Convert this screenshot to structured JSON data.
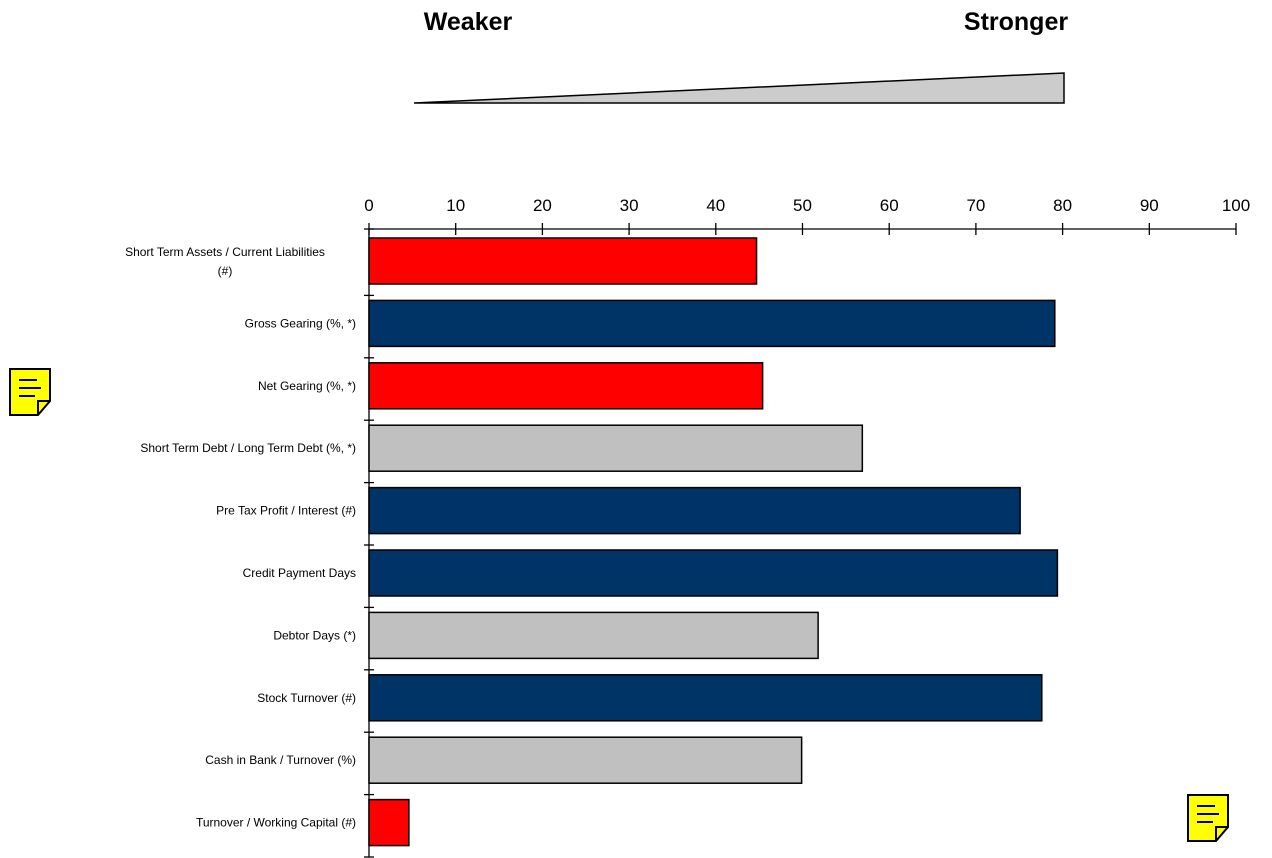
{
  "header": {
    "weaker_label": "Weaker",
    "stronger_label": "Stronger"
  },
  "icons": {
    "left_note": "note-icon",
    "right_note": "note-icon",
    "note_color": "#ffff00"
  },
  "chart_data": {
    "type": "bar",
    "orientation": "horizontal",
    "xlim": [
      0,
      100
    ],
    "x_ticks": [
      "0",
      "10",
      "20",
      "30",
      "40",
      "50",
      "60",
      "70",
      "80",
      "90",
      "100"
    ],
    "categories": [
      [
        "Short Term Assets / Current Liabilities",
        "(#)"
      ],
      [
        "Gross Gearing (%, *)"
      ],
      [
        "Net Gearing (%, *)"
      ],
      [
        "Short Term Debt / Long Term Debt (%, *)"
      ],
      [
        "Pre Tax Profit / Interest (#)"
      ],
      [
        "Credit Payment Days"
      ],
      [
        "Debtor Days (*)"
      ],
      [
        "Stock Turnover (#)"
      ],
      [
        "Cash in Bank / Turnover (%)"
      ],
      [
        "Turnover / Working Capital (#)"
      ]
    ],
    "values": [
      44.7,
      79.1,
      45.4,
      56.9,
      75.1,
      79.4,
      51.8,
      77.6,
      49.9,
      4.6
    ],
    "bar_colors": [
      "#ff0000",
      "#003366",
      "#ff0000",
      "#c0c0c0",
      "#003366",
      "#003366",
      "#c0c0c0",
      "#003366",
      "#c0c0c0",
      "#ff0000"
    ],
    "grid": false,
    "legend": "none"
  }
}
